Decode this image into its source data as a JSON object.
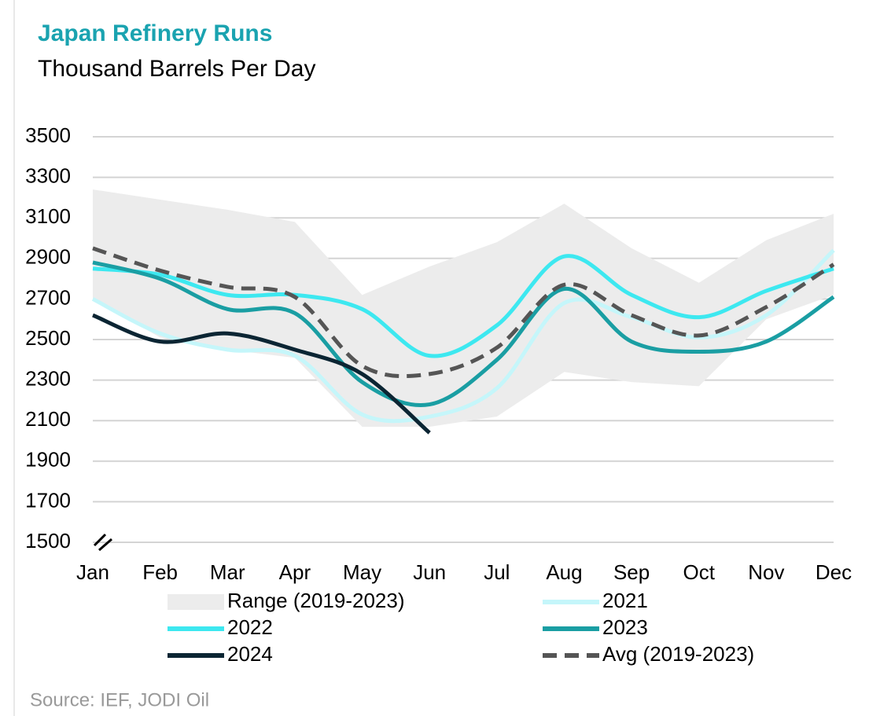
{
  "chart_data": {
    "type": "line",
    "title": "Japan Refinery Runs",
    "subtitle": "Thousand Barrels Per Day",
    "source": "Source: IEF, JODI Oil",
    "categories": [
      "Jan",
      "Feb",
      "Mar",
      "Apr",
      "May",
      "Jun",
      "Jul",
      "Aug",
      "Sep",
      "Oct",
      "Nov",
      "Dec"
    ],
    "ylim": [
      1500,
      3500
    ],
    "yticks": [
      1500,
      1700,
      1900,
      2100,
      2300,
      2500,
      2700,
      2900,
      3100,
      3300,
      3500
    ],
    "grid": true,
    "range": {
      "name": "Range (2019-2023)",
      "color": "#ececec",
      "upper": [
        3240,
        3190,
        3140,
        3080,
        2720,
        2860,
        2980,
        3170,
        2950,
        2780,
        2990,
        3120
      ],
      "lower": [
        2700,
        2510,
        2450,
        2410,
        2070,
        2070,
        2120,
        2340,
        2290,
        2270,
        2600,
        2720
      ]
    },
    "series": [
      {
        "name": "2021",
        "color": "#c5f6fa",
        "values": [
          2700,
          2530,
          2450,
          2420,
          2130,
          2120,
          2260,
          2680,
          2610,
          2510,
          2620,
          2940
        ]
      },
      {
        "name": "2022",
        "color": "#3de8f0",
        "values": [
          2850,
          2820,
          2720,
          2720,
          2650,
          2420,
          2570,
          2910,
          2720,
          2610,
          2740,
          2850
        ]
      },
      {
        "name": "2023",
        "color": "#1a9ea3",
        "values": [
          2880,
          2800,
          2650,
          2630,
          2290,
          2180,
          2400,
          2750,
          2490,
          2440,
          2490,
          2710
        ]
      },
      {
        "name": "2024",
        "color": "#0b2533",
        "values": [
          2620,
          2490,
          2530,
          2450,
          2330,
          2040,
          null,
          null,
          null,
          null,
          null,
          null
        ]
      },
      {
        "name": "Avg (2019-2023)",
        "color": "#555555",
        "dashed": true,
        "values": [
          2950,
          2840,
          2760,
          2710,
          2370,
          2330,
          2460,
          2770,
          2620,
          2520,
          2660,
          2870
        ]
      }
    ]
  }
}
